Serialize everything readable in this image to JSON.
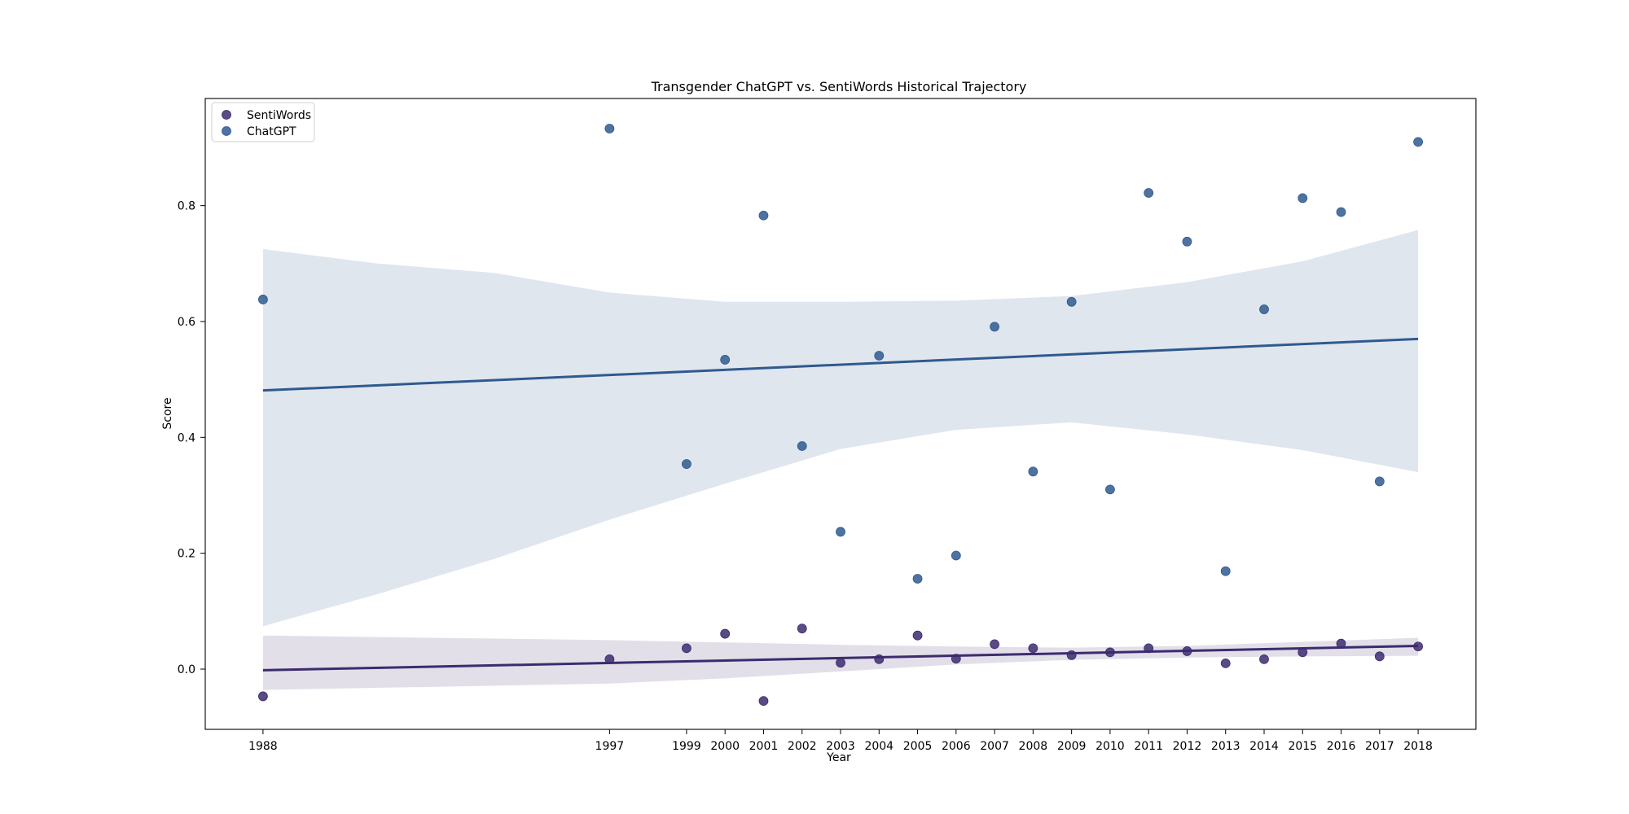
{
  "chart_data": {
    "type": "scatter",
    "title": "Transgender ChatGPT vs. SentiWords Historical Trajectory",
    "xlabel": "Year",
    "ylabel": "Score",
    "x_ticks": [
      1988,
      1997,
      1999,
      2000,
      2001,
      2002,
      2003,
      2004,
      2005,
      2006,
      2007,
      2008,
      2009,
      2010,
      2011,
      2012,
      2013,
      2014,
      2015,
      2016,
      2017,
      2018
    ],
    "y_ticks": [
      0.0,
      0.2,
      0.4,
      0.6,
      0.8
    ],
    "y_tick_labels": [
      "0.0",
      "0.2",
      "0.4",
      "0.6",
      "0.8"
    ],
    "xlim": [
      1986.5,
      2019.5
    ],
    "ylim": [
      -0.104,
      0.985
    ],
    "grid": false,
    "legend_position": "top-left",
    "series": [
      {
        "name": "SentiWords",
        "color": "#3d2b6e",
        "points": [
          [
            1988,
            -0.047
          ],
          [
            1997,
            0.017
          ],
          [
            1999,
            0.036
          ],
          [
            2000,
            0.061
          ],
          [
            2001,
            -0.055
          ],
          [
            2002,
            0.07
          ],
          [
            2003,
            0.011
          ],
          [
            2004,
            0.017
          ],
          [
            2005,
            0.058
          ],
          [
            2006,
            0.018
          ],
          [
            2007,
            0.043
          ],
          [
            2008,
            0.036
          ],
          [
            2009,
            0.024
          ],
          [
            2010,
            0.029
          ],
          [
            2011,
            0.036
          ],
          [
            2012,
            0.031
          ],
          [
            2013,
            0.01
          ],
          [
            2014,
            0.017
          ],
          [
            2015,
            0.029
          ],
          [
            2016,
            0.044
          ],
          [
            2017,
            0.022
          ],
          [
            2018,
            0.039
          ]
        ],
        "trend": [
          [
            1988,
            -0.002
          ],
          [
            2018,
            0.04
          ]
        ],
        "ci_upper": [
          [
            1988,
            0.058
          ],
          [
            1997,
            0.05
          ],
          [
            2000,
            0.046
          ],
          [
            2003,
            0.042
          ],
          [
            2006,
            0.039
          ],
          [
            2009,
            0.037
          ],
          [
            2012,
            0.04
          ],
          [
            2015,
            0.047
          ],
          [
            2018,
            0.054
          ]
        ],
        "ci_lower": [
          [
            1988,
            -0.036
          ],
          [
            1997,
            -0.025
          ],
          [
            2000,
            -0.016
          ],
          [
            2003,
            -0.004
          ],
          [
            2006,
            0.008
          ],
          [
            2009,
            0.016
          ],
          [
            2012,
            0.02
          ],
          [
            2015,
            0.022
          ],
          [
            2018,
            0.023
          ]
        ]
      },
      {
        "name": "ChatGPT",
        "color": "#2f5a8f",
        "points": [
          [
            1988,
            0.638
          ],
          [
            1997,
            0.933
          ],
          [
            1999,
            0.354
          ],
          [
            2000,
            0.534
          ],
          [
            2001,
            0.783
          ],
          [
            2002,
            0.385
          ],
          [
            2003,
            0.237
          ],
          [
            2004,
            0.541
          ],
          [
            2005,
            0.156
          ],
          [
            2006,
            0.196
          ],
          [
            2007,
            0.591
          ],
          [
            2008,
            0.341
          ],
          [
            2009,
            0.634
          ],
          [
            2010,
            0.31
          ],
          [
            2011,
            0.822
          ],
          [
            2012,
            0.738
          ],
          [
            2013,
            0.169
          ],
          [
            2014,
            0.621
          ],
          [
            2015,
            0.813
          ],
          [
            2016,
            0.789
          ],
          [
            2017,
            0.324
          ],
          [
            2018,
            0.91
          ]
        ],
        "trend": [
          [
            1988,
            0.481
          ],
          [
            2018,
            0.57
          ]
        ],
        "ci_upper": [
          [
            1988,
            0.725
          ],
          [
            1991,
            0.7
          ],
          [
            1994,
            0.684
          ],
          [
            1997,
            0.65
          ],
          [
            2000,
            0.634
          ],
          [
            2003,
            0.634
          ],
          [
            2006,
            0.636
          ],
          [
            2009,
            0.644
          ],
          [
            2012,
            0.668
          ],
          [
            2015,
            0.704
          ],
          [
            2018,
            0.758
          ]
        ],
        "ci_lower": [
          [
            1988,
            0.074
          ],
          [
            1991,
            0.13
          ],
          [
            1994,
            0.19
          ],
          [
            1997,
            0.258
          ],
          [
            2000,
            0.32
          ],
          [
            2003,
            0.38
          ],
          [
            2006,
            0.413
          ],
          [
            2009,
            0.426
          ],
          [
            2012,
            0.405
          ],
          [
            2015,
            0.378
          ],
          [
            2018,
            0.34
          ]
        ]
      }
    ]
  }
}
